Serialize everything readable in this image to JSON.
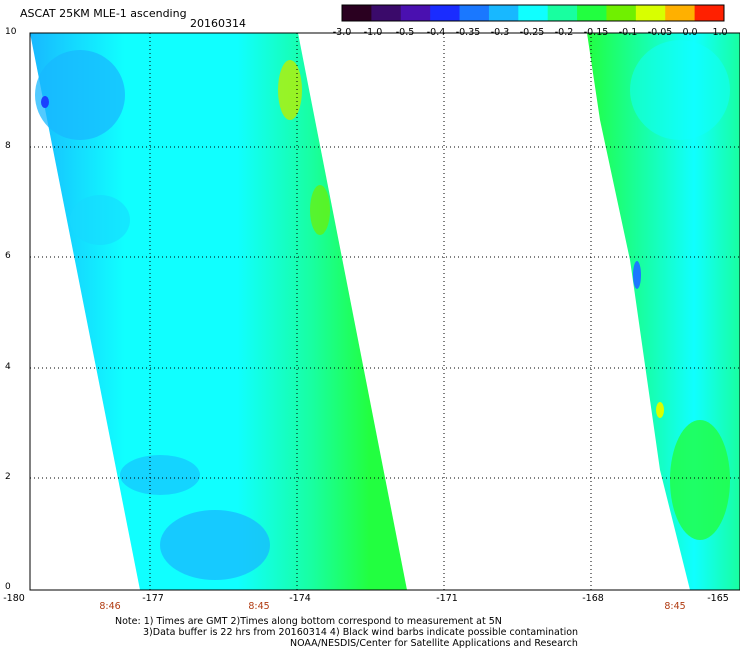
{
  "header": {
    "title": "ASCAT 25KM MLE-1 ascending",
    "date": "20160314"
  },
  "colorbar": {
    "labels": [
      "-3.0",
      "-1.0",
      "-0.5",
      "-0.4",
      "-0.35",
      "-0.3",
      "-0.25",
      "-0.2",
      "-0.15",
      "-0.1",
      "-0.05",
      "0.0",
      "1.0"
    ],
    "colors": [
      "#2a0020",
      "#3a0a6a",
      "#4a10b0",
      "#1a2cff",
      "#1a78ff",
      "#18b8ff",
      "#10ffff",
      "#18ffa0",
      "#22ff40",
      "#70f000",
      "#d8ff00",
      "#ffb000",
      "#ff2000"
    ]
  },
  "axes": {
    "y_ticks": [
      "0",
      "2",
      "4",
      "6",
      "8",
      "10"
    ],
    "x_ticks": [
      "-180",
      "-177",
      "-174",
      "-171",
      "-168",
      "-165"
    ],
    "time_labels": [
      "8:46",
      "8:45",
      "8:45"
    ]
  },
  "notes": {
    "line1": "Note: 1) Times are GMT 2)Times along bottom correspond to measurement at 5N",
    "line2": "3)Data buffer is 22 hrs from 20160314 4) Black wind barbs indicate possible contamination",
    "line3": "NOAA/NESDIS/Center for Satellite Applications and Research"
  }
}
